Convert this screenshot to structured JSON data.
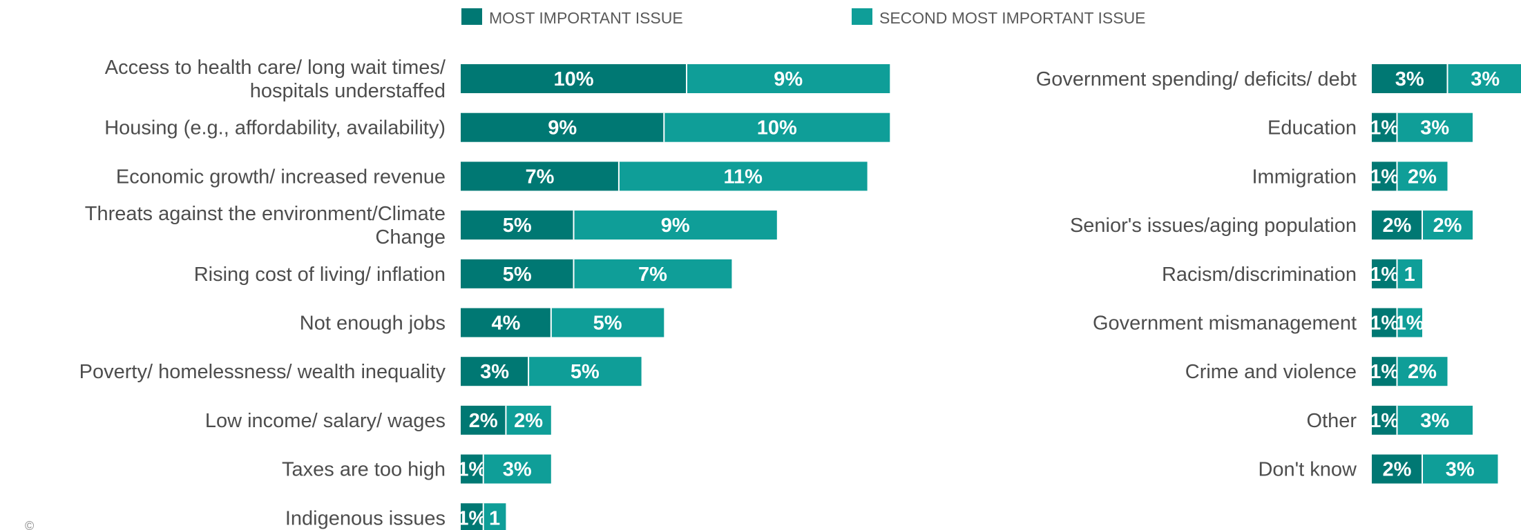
{
  "colors": {
    "most": "#007873",
    "second": "#0f9e98",
    "divider": "#ffffff"
  },
  "legend": [
    {
      "key": "most",
      "label": "MOST IMPORTANT ISSUE"
    },
    {
      "key": "second",
      "label": "SECOND MOST IMPORTANT ISSUE"
    }
  ],
  "footer": "©",
  "chart_data": [
    {
      "type": "bar",
      "orientation": "horizontal",
      "stacked": true,
      "categories": [
        [
          "Access to health care/ long wait times/",
          "hospitals understaffed"
        ],
        [
          "Housing (e.g., affordability, availability)"
        ],
        [
          "Economic growth/ increased revenue"
        ],
        [
          "Threats against the environment/Climate",
          "Change"
        ],
        [
          "Rising cost of living/ inflation"
        ],
        [
          "Not enough jobs"
        ],
        [
          "Poverty/ homelessness/ wealth inequality"
        ],
        [
          "Low income/ salary/ wages"
        ],
        [
          "Taxes are too high"
        ],
        [
          "Indigenous issues"
        ]
      ],
      "series": [
        {
          "name": "MOST IMPORTANT ISSUE",
          "key": "most",
          "values": [
            10,
            9,
            7,
            5,
            5,
            4,
            3,
            2,
            1,
            1
          ],
          "labels": [
            "10%",
            "9%",
            "7%",
            "5%",
            "5%",
            "4%",
            "3%",
            "2%",
            "1%",
            "1%"
          ]
        },
        {
          "name": "SECOND MOST IMPORTANT ISSUE",
          "key": "second",
          "values": [
            9,
            10,
            11,
            9,
            7,
            5,
            5,
            2,
            3,
            1
          ],
          "labels": [
            "9%",
            "10%",
            "11%",
            "9%",
            "7%",
            "5%",
            "5%",
            "2%",
            "3%",
            "1"
          ]
        }
      ]
    },
    {
      "type": "bar",
      "orientation": "horizontal",
      "stacked": true,
      "categories": [
        [
          "Government spending/ deficits/ debt"
        ],
        [
          "Education"
        ],
        [
          "Immigration"
        ],
        [
          "Senior's issues/aging population"
        ],
        [
          "Racism/discrimination"
        ],
        [
          "Government mismanagement"
        ],
        [
          "Crime and violence"
        ],
        [
          "Other"
        ],
        [
          "Don't know"
        ]
      ],
      "series": [
        {
          "name": "MOST IMPORTANT ISSUE",
          "key": "most",
          "values": [
            3,
            1,
            1,
            2,
            1,
            1,
            1,
            1,
            2
          ],
          "labels": [
            "3%",
            "1%",
            "1%",
            "2%",
            "1%",
            "1%",
            "1%",
            "1%",
            "2%"
          ]
        },
        {
          "name": "SECOND MOST IMPORTANT ISSUE",
          "key": "second",
          "values": [
            3,
            3,
            2,
            2,
            1,
            1,
            2,
            3,
            3
          ],
          "labels": [
            "3%",
            "3%",
            "2%",
            "2%",
            "1",
            "1%",
            "2%",
            "3%",
            "3%"
          ]
        }
      ]
    }
  ]
}
